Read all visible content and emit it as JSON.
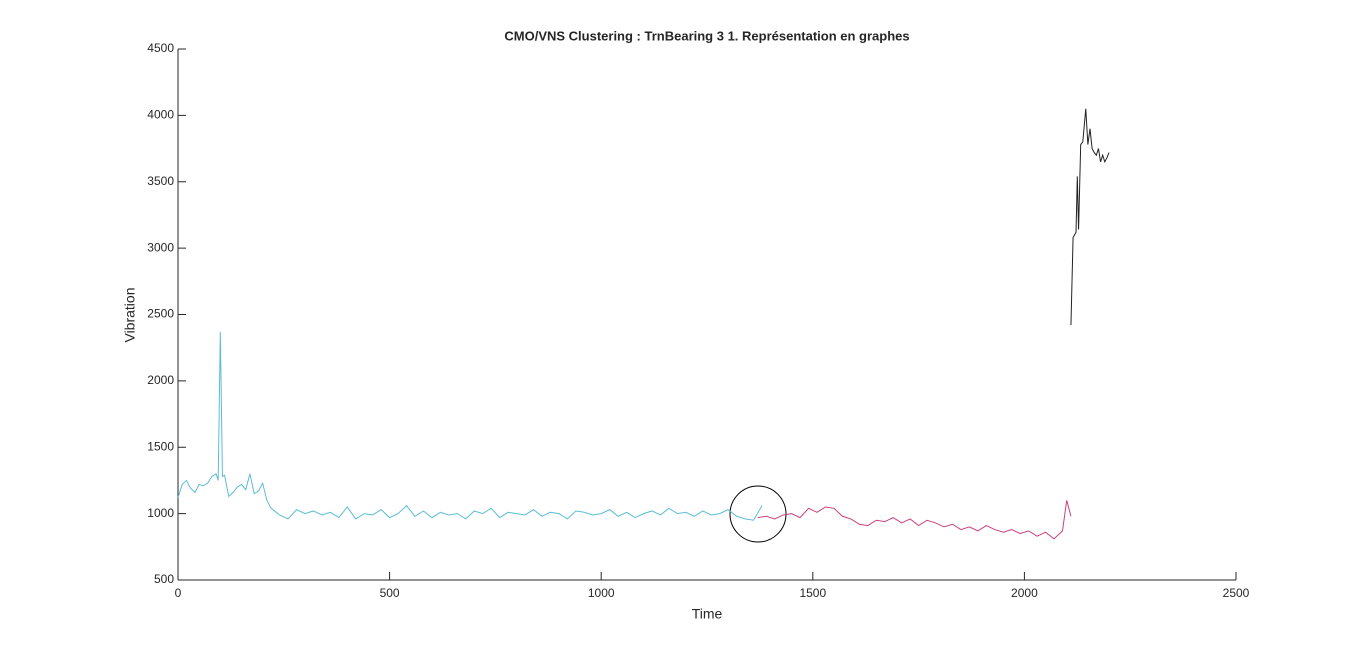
{
  "chart_data": {
    "type": "line",
    "title": "CMO/VNS Clustering : TrnBearing 3 1. Représentation en graphes",
    "xlabel": "Time",
    "ylabel": "Vibration",
    "xlim": [
      0,
      2500
    ],
    "ylim": [
      500,
      4500
    ],
    "xticks": [
      0,
      500,
      1000,
      1500,
      2000,
      2500
    ],
    "yticks": [
      500,
      1000,
      1500,
      2000,
      2500,
      3000,
      3500,
      4000,
      4500
    ],
    "series": [
      {
        "color": "#5cbdd4",
        "x": [
          0,
          10,
          20,
          30,
          40,
          50,
          60,
          70,
          80,
          90,
          95,
          100,
          105,
          110,
          120,
          130,
          140,
          150,
          160,
          170,
          180,
          190,
          200,
          210,
          220,
          240,
          260,
          280,
          300,
          320,
          340,
          360,
          380,
          400,
          420,
          440,
          460,
          480,
          500,
          520,
          540,
          560,
          580,
          600,
          620,
          640,
          660,
          680,
          700,
          720,
          740,
          760,
          780,
          800,
          820,
          840,
          860,
          880,
          900,
          920,
          940,
          960,
          980,
          1000,
          1020,
          1040,
          1060,
          1080,
          1100,
          1120,
          1140,
          1160,
          1180,
          1200,
          1220,
          1240,
          1260,
          1280,
          1300,
          1320,
          1340,
          1360,
          1380
        ],
        "values": [
          1120,
          1220,
          1250,
          1190,
          1160,
          1220,
          1210,
          1230,
          1280,
          1300,
          1250,
          2370,
          1280,
          1290,
          1130,
          1160,
          1200,
          1220,
          1180,
          1300,
          1150,
          1170,
          1230,
          1100,
          1040,
          990,
          960,
          1030,
          1000,
          1020,
          990,
          1010,
          970,
          1050,
          960,
          1000,
          990,
          1030,
          970,
          1000,
          1060,
          980,
          1020,
          970,
          1010,
          990,
          1000,
          960,
          1020,
          1000,
          1040,
          970,
          1010,
          1000,
          990,
          1030,
          980,
          1010,
          1000,
          960,
          1020,
          1010,
          990,
          1000,
          1030,
          980,
          1010,
          970,
          1000,
          1020,
          990,
          1040,
          1000,
          1010,
          980,
          1020,
          990,
          1000,
          1030,
          980,
          960,
          950,
          1060
        ]
      },
      {
        "color": "#c8417c",
        "x": [
          1370,
          1390,
          1410,
          1430,
          1450,
          1470,
          1490,
          1510,
          1530,
          1550,
          1570,
          1590,
          1610,
          1630,
          1650,
          1670,
          1690,
          1710,
          1730,
          1750,
          1770,
          1790,
          1810,
          1830,
          1850,
          1870,
          1890,
          1910,
          1930,
          1950,
          1970,
          1990,
          2010,
          2030,
          2050,
          2070,
          2090,
          2100,
          2110
        ],
        "values": [
          970,
          980,
          960,
          990,
          1000,
          970,
          1040,
          1010,
          1050,
          1040,
          980,
          960,
          920,
          910,
          950,
          940,
          970,
          930,
          960,
          910,
          950,
          930,
          900,
          920,
          880,
          900,
          870,
          910,
          880,
          860,
          880,
          850,
          870,
          830,
          860,
          810,
          870,
          1100,
          980
        ]
      },
      {
        "color": "#222222",
        "x": [
          2110,
          2115,
          2122,
          2125,
          2128,
          2133,
          2138,
          2145,
          2150,
          2155,
          2160,
          2165,
          2170,
          2175,
          2180,
          2185,
          2190,
          2195,
          2200
        ],
        "values": [
          2420,
          3080,
          3120,
          3540,
          3140,
          3780,
          3800,
          4050,
          3780,
          3900,
          3750,
          3720,
          3700,
          3750,
          3650,
          3700,
          3650,
          3680,
          3720
        ]
      }
    ]
  }
}
